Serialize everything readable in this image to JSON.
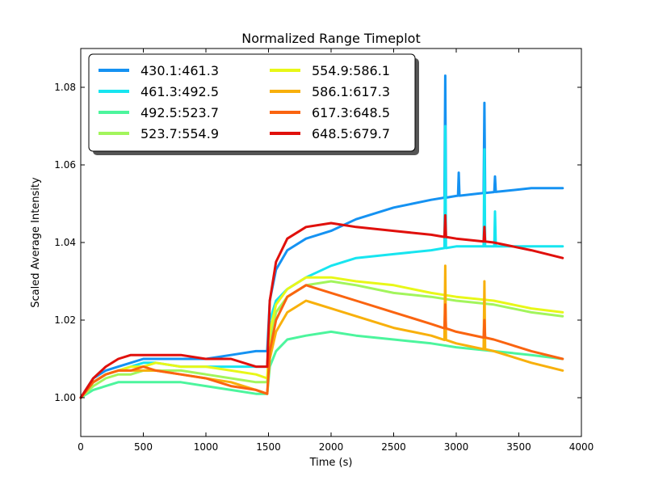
{
  "chart_data": {
    "type": "line",
    "title": "Normalized Range Timeplot",
    "xlabel": "Time (s)",
    "ylabel": "Scaled Average Intensity",
    "xlim": [
      0,
      4000
    ],
    "ylim": [
      0.99,
      1.09
    ],
    "xticks": [
      0,
      500,
      1000,
      1500,
      2000,
      2500,
      3000,
      3500,
      4000
    ],
    "yticks": [
      1.0,
      1.02,
      1.04,
      1.06,
      1.08
    ],
    "xtick_labels": [
      "0",
      "500",
      "1000",
      "1500",
      "2000",
      "2500",
      "3000",
      "3500",
      "4000"
    ],
    "ytick_labels": [
      "1.00",
      "1.02",
      "1.04",
      "1.06",
      "1.08"
    ],
    "grid": false,
    "legend": {
      "position": "top-left",
      "columns": 2
    },
    "series": [
      {
        "name": "430.1:461.3",
        "color": "#1592f2",
        "x": [
          0,
          100,
          200,
          300,
          400,
          500,
          600,
          800,
          1000,
          1200,
          1400,
          1490,
          1510,
          1560,
          1650,
          1800,
          2000,
          2200,
          2500,
          2800,
          3000,
          3300,
          3600,
          3850
        ],
        "y": [
          1.0,
          1.005,
          1.007,
          1.008,
          1.009,
          1.01,
          1.01,
          1.01,
          1.01,
          1.011,
          1.012,
          1.012,
          1.025,
          1.033,
          1.038,
          1.041,
          1.043,
          1.046,
          1.049,
          1.051,
          1.052,
          1.053,
          1.054,
          1.054
        ],
        "spikes": [
          [
            2912,
            1.083
          ],
          [
            3020,
            1.058
          ],
          [
            3225,
            1.076
          ],
          [
            3310,
            1.057
          ]
        ]
      },
      {
        "name": "461.3:492.5",
        "color": "#17e5f0",
        "x": [
          0,
          100,
          200,
          300,
          400,
          500,
          600,
          800,
          1000,
          1200,
          1400,
          1490,
          1510,
          1560,
          1650,
          1800,
          2000,
          2200,
          2500,
          2800,
          3000,
          3300,
          3600,
          3850
        ],
        "y": [
          1.0,
          1.004,
          1.006,
          1.007,
          1.008,
          1.009,
          1.009,
          1.008,
          1.008,
          1.008,
          1.008,
          1.008,
          1.02,
          1.025,
          1.028,
          1.031,
          1.034,
          1.036,
          1.037,
          1.038,
          1.039,
          1.039,
          1.039,
          1.039
        ],
        "spikes": [
          [
            2912,
            1.07
          ],
          [
            3225,
            1.064
          ],
          [
            3310,
            1.048
          ]
        ]
      },
      {
        "name": "492.5:523.7",
        "color": "#4cf59d",
        "x": [
          0,
          100,
          200,
          300,
          400,
          500,
          600,
          800,
          1000,
          1200,
          1400,
          1490,
          1510,
          1560,
          1650,
          1800,
          2000,
          2200,
          2500,
          2800,
          3000,
          3300,
          3600,
          3850
        ],
        "y": [
          1.0,
          1.002,
          1.003,
          1.004,
          1.004,
          1.004,
          1.004,
          1.004,
          1.003,
          1.002,
          1.001,
          1.001,
          1.008,
          1.012,
          1.015,
          1.016,
          1.017,
          1.016,
          1.015,
          1.014,
          1.013,
          1.012,
          1.011,
          1.01
        ],
        "spikes": []
      },
      {
        "name": "523.7:554.9",
        "color": "#a2f55c",
        "x": [
          0,
          100,
          200,
          300,
          400,
          500,
          600,
          800,
          1000,
          1200,
          1400,
          1490,
          1510,
          1560,
          1650,
          1800,
          2000,
          2200,
          2500,
          2800,
          3000,
          3300,
          3600,
          3850
        ],
        "y": [
          1.0,
          1.003,
          1.005,
          1.006,
          1.006,
          1.007,
          1.007,
          1.007,
          1.006,
          1.005,
          1.004,
          1.004,
          1.015,
          1.022,
          1.026,
          1.029,
          1.03,
          1.029,
          1.027,
          1.026,
          1.025,
          1.024,
          1.022,
          1.021
        ],
        "spikes": []
      },
      {
        "name": "554.9:586.1",
        "color": "#e8f718",
        "x": [
          0,
          100,
          200,
          300,
          400,
          500,
          600,
          800,
          1000,
          1200,
          1400,
          1490,
          1510,
          1560,
          1650,
          1800,
          2000,
          2200,
          2500,
          2800,
          3000,
          3300,
          3600,
          3850
        ],
        "y": [
          1.0,
          1.004,
          1.006,
          1.007,
          1.008,
          1.008,
          1.009,
          1.008,
          1.008,
          1.007,
          1.006,
          1.005,
          1.017,
          1.024,
          1.028,
          1.031,
          1.031,
          1.03,
          1.029,
          1.027,
          1.026,
          1.025,
          1.023,
          1.022
        ],
        "spikes": []
      },
      {
        "name": "586.1:617.3",
        "color": "#f8b00c",
        "x": [
          0,
          100,
          200,
          300,
          400,
          500,
          600,
          800,
          1000,
          1200,
          1400,
          1490,
          1510,
          1560,
          1650,
          1800,
          2000,
          2200,
          2500,
          2800,
          3000,
          3300,
          3600,
          3850
        ],
        "y": [
          1.0,
          1.004,
          1.006,
          1.007,
          1.007,
          1.007,
          1.007,
          1.006,
          1.005,
          1.004,
          1.002,
          1.001,
          1.01,
          1.017,
          1.022,
          1.025,
          1.023,
          1.021,
          1.018,
          1.016,
          1.014,
          1.012,
          1.009,
          1.007
        ],
        "spikes": [
          [
            2912,
            1.034
          ],
          [
            3225,
            1.03
          ]
        ]
      },
      {
        "name": "617.3:648.5",
        "color": "#fa6410",
        "x": [
          0,
          100,
          200,
          300,
          400,
          500,
          600,
          800,
          1000,
          1200,
          1400,
          1490,
          1510,
          1560,
          1650,
          1800,
          2000,
          2200,
          2500,
          2800,
          3000,
          3300,
          3600,
          3850
        ],
        "y": [
          1.0,
          1.004,
          1.006,
          1.007,
          1.007,
          1.008,
          1.007,
          1.006,
          1.005,
          1.003,
          1.002,
          1.001,
          1.012,
          1.02,
          1.026,
          1.029,
          1.027,
          1.025,
          1.022,
          1.019,
          1.017,
          1.015,
          1.012,
          1.01
        ],
        "spikes": [
          [
            2912,
            1.024
          ],
          [
            3225,
            1.02
          ]
        ]
      },
      {
        "name": "648.5:679.7",
        "color": "#e0100c",
        "x": [
          0,
          100,
          200,
          300,
          400,
          500,
          600,
          800,
          1000,
          1200,
          1400,
          1490,
          1510,
          1560,
          1650,
          1800,
          2000,
          2200,
          2500,
          2800,
          3000,
          3300,
          3600,
          3850
        ],
        "y": [
          1.0,
          1.005,
          1.008,
          1.01,
          1.011,
          1.011,
          1.011,
          1.011,
          1.01,
          1.01,
          1.008,
          1.008,
          1.025,
          1.035,
          1.041,
          1.044,
          1.045,
          1.044,
          1.043,
          1.042,
          1.041,
          1.04,
          1.038,
          1.036
        ],
        "spikes": [
          [
            2912,
            1.047
          ],
          [
            3225,
            1.044
          ]
        ]
      }
    ]
  }
}
